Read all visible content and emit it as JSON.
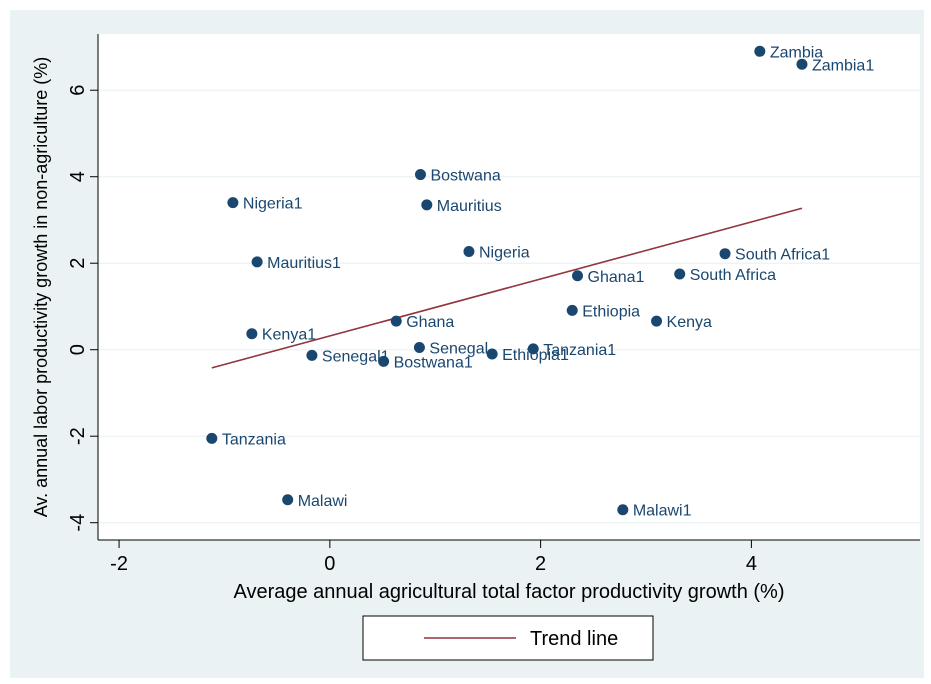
{
  "chart_data": {
    "type": "scatter",
    "xlabel": "Average annual agricultural total factor productivity growth (%)",
    "ylabel": "Av. annual labor productivity growth in non-agriculture (%)",
    "xlim": [
      -2.2,
      5.6
    ],
    "ylim": [
      -4.4,
      7.3
    ],
    "xticks": [
      -2,
      0,
      2,
      4
    ],
    "yticks": [
      -4,
      -2,
      0,
      2,
      4,
      6
    ],
    "grid": true,
    "points": [
      {
        "label": "Zambia",
        "x": 4.08,
        "y": 6.9
      },
      {
        "label": "Zambia1",
        "x": 4.48,
        "y": 6.6
      },
      {
        "label": "Bostwana",
        "x": 0.86,
        "y": 4.05
      },
      {
        "label": "Nigeria1",
        "x": -0.92,
        "y": 3.4
      },
      {
        "label": "Mauritius",
        "x": 0.92,
        "y": 3.35
      },
      {
        "label": "Nigeria",
        "x": 1.32,
        "y": 2.27
      },
      {
        "label": "South Africa1",
        "x": 3.75,
        "y": 2.22
      },
      {
        "label": "Mauritius1",
        "x": -0.69,
        "y": 2.03
      },
      {
        "label": "Ghana1",
        "x": 2.35,
        "y": 1.71
      },
      {
        "label": "South Africa",
        "x": 3.32,
        "y": 1.75
      },
      {
        "label": "Ethiopia",
        "x": 2.3,
        "y": 0.91
      },
      {
        "label": "Kenya",
        "x": 3.1,
        "y": 0.66
      },
      {
        "label": "Ghana",
        "x": 0.63,
        "y": 0.66
      },
      {
        "label": "Kenya1",
        "x": -0.74,
        "y": 0.37
      },
      {
        "label": "Senegal",
        "x": 0.85,
        "y": 0.05
      },
      {
        "label": "Tanzania1",
        "x": 1.93,
        "y": 0.02
      },
      {
        "label": "Ethiopia1",
        "x": 1.54,
        "y": -0.1
      },
      {
        "label": "Senegal1",
        "x": -0.17,
        "y": -0.13
      },
      {
        "label": "Bostwana1",
        "x": 0.51,
        "y": -0.27
      },
      {
        "label": "Tanzania",
        "x": -1.12,
        "y": -2.05
      },
      {
        "label": "Malawi",
        "x": -0.4,
        "y": -3.47
      },
      {
        "label": "Malawi1",
        "x": 2.78,
        "y": -3.7
      }
    ],
    "trend": {
      "name": "Trend line",
      "x": [
        -1.12,
        4.48
      ],
      "y": [
        -0.42,
        3.27
      ]
    },
    "legend_position": "bottom-center",
    "colors": {
      "marker": "#1a476f",
      "label": "#1a476f",
      "trend": "#90353b",
      "background": "#eaf2f3",
      "plot_area": "#ffffff",
      "grid": "#eaf2f3"
    }
  }
}
